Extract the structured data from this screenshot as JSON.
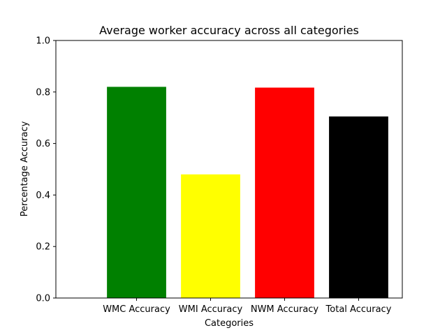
{
  "chart_data": {
    "type": "bar",
    "title": "Average worker accuracy across all categories",
    "xlabel": "Categories",
    "ylabel": "Percentage Accuracy",
    "categories": [
      "WMC Accuracy",
      "WMI Accuracy",
      "NWM Accuracy",
      "Total Accuracy"
    ],
    "values": [
      0.82,
      0.48,
      0.817,
      0.705
    ],
    "colors": [
      "#008000",
      "#ffff00",
      "#ff0000",
      "#000000"
    ],
    "ylim": [
      0,
      1.0
    ],
    "yticks": [
      "0.0",
      "0.2",
      "0.4",
      "0.6",
      "0.8",
      "1.0"
    ],
    "grid": false,
    "legend": "none"
  }
}
